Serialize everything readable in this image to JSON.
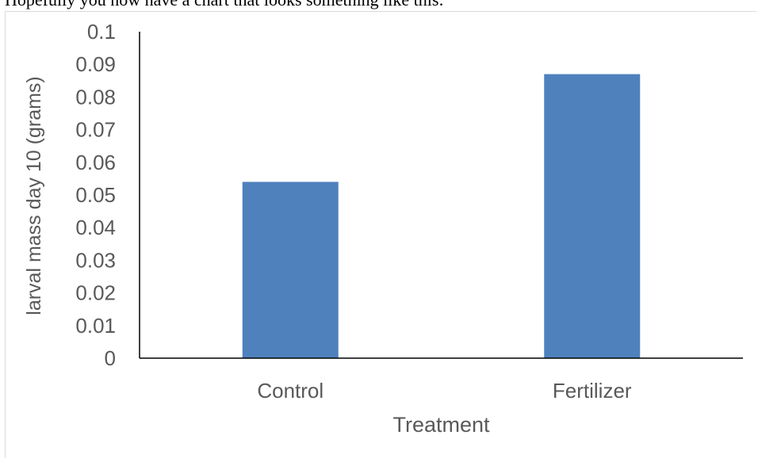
{
  "header_text": "Hopefully you now have a chart that looks something like this:",
  "chart_data": {
    "type": "bar",
    "categories": [
      "Control",
      "Fertilizer"
    ],
    "values": [
      0.054,
      0.087
    ],
    "xlabel": "Treatment",
    "ylabel": "larval mass day 10 (grams)",
    "ylim": [
      0,
      0.1
    ],
    "yticks": [
      "0",
      "0.01",
      "0.02",
      "0.03",
      "0.04",
      "0.05",
      "0.06",
      "0.07",
      "0.08",
      "0.09",
      "0.1"
    ],
    "bar_color": "#4f81bd",
    "axis_color": "#000000",
    "text_color": "#595959",
    "grid": false,
    "legend": "none"
  }
}
